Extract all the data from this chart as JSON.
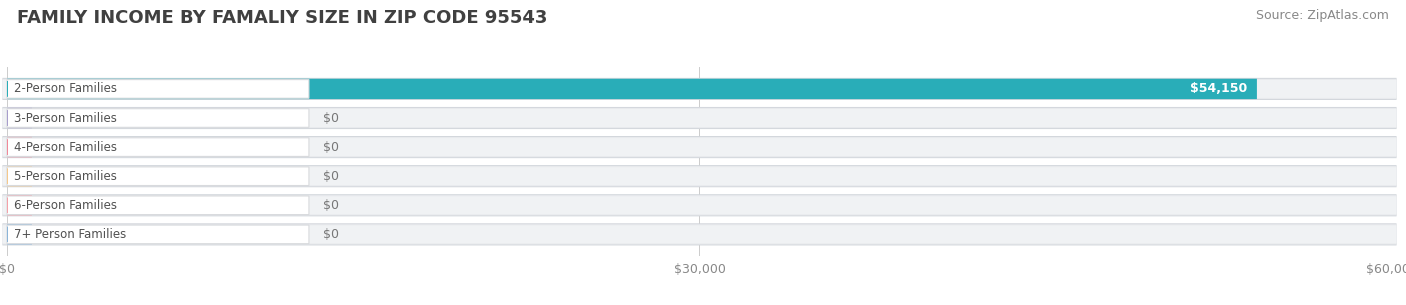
{
  "title": "FAMILY INCOME BY FAMALIY SIZE IN ZIP CODE 95543",
  "source": "Source: ZipAtlas.com",
  "categories": [
    "2-Person Families",
    "3-Person Families",
    "4-Person Families",
    "5-Person Families",
    "6-Person Families",
    "7+ Person Families"
  ],
  "values": [
    54150,
    0,
    0,
    0,
    0,
    0
  ],
  "bar_colors": [
    "#29adb8",
    "#a79dcc",
    "#f08898",
    "#f5c88a",
    "#f4a0a8",
    "#8ab4d8"
  ],
  "xlim": [
    0,
    60000
  ],
  "xticks": [
    0,
    30000,
    60000
  ],
  "xtick_labels": [
    "$0",
    "$30,000",
    "$60,000"
  ],
  "background_color": "#ffffff",
  "bar_bg_color": "#e8eaed",
  "bar_bg_border": "#d0d4da",
  "title_fontsize": 13,
  "source_fontsize": 9,
  "tick_fontsize": 9,
  "label_fontsize": 8.5,
  "value_fontsize": 9,
  "figsize": [
    14.06,
    3.05
  ],
  "dpi": 100
}
